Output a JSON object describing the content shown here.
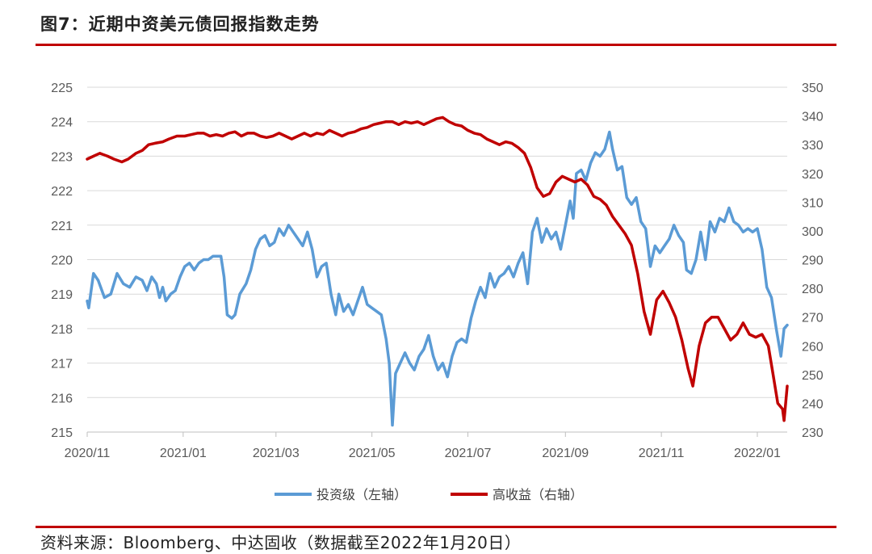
{
  "header": {
    "title": "图7：近期中资美元债回报指数走势"
  },
  "footer": {
    "source": "资料来源：Bloomberg、中达固收（数据截至2022年1月20日）"
  },
  "colors": {
    "series_left": "#5b9bd5",
    "series_right": "#c00000",
    "grid": "#d9d9d9",
    "rule": "#c00000"
  },
  "chart_data": {
    "type": "line",
    "title": "图7：近期中资美元债回报指数走势",
    "xlabel": "",
    "ylabel": "",
    "x_range": [
      "2020-11",
      "2022-01-20"
    ],
    "x_ticks": [
      "2020/11",
      "2021/01",
      "2021/03",
      "2021/05",
      "2021/07",
      "2021/09",
      "2021/11",
      "2022/01"
    ],
    "y_left": {
      "lim": [
        215,
        225
      ],
      "ticks": [
        215,
        216,
        217,
        218,
        219,
        220,
        221,
        222,
        223,
        224,
        225
      ]
    },
    "y_right": {
      "lim": [
        230,
        350
      ],
      "ticks": [
        230,
        240,
        250,
        260,
        270,
        280,
        290,
        300,
        310,
        320,
        330,
        340,
        350
      ]
    },
    "grid": true,
    "legend": "bottom-center",
    "series": [
      {
        "name": "投资级（左轴）",
        "axis": "left",
        "points": [
          [
            "2020-11-01",
            218.8
          ],
          [
            "2020-11-02",
            218.6
          ],
          [
            "2020-11-05",
            219.6
          ],
          [
            "2020-11-08",
            219.4
          ],
          [
            "2020-11-12",
            218.9
          ],
          [
            "2020-11-16",
            219.0
          ],
          [
            "2020-11-20",
            219.6
          ],
          [
            "2020-11-24",
            219.3
          ],
          [
            "2020-11-28",
            219.2
          ],
          [
            "2020-12-02",
            219.5
          ],
          [
            "2020-12-06",
            219.4
          ],
          [
            "2020-12-09",
            219.1
          ],
          [
            "2020-12-12",
            219.5
          ],
          [
            "2020-12-15",
            219.3
          ],
          [
            "2020-12-17",
            218.9
          ],
          [
            "2020-12-19",
            219.2
          ],
          [
            "2020-12-21",
            218.8
          ],
          [
            "2020-12-24",
            219.0
          ],
          [
            "2020-12-27",
            219.1
          ],
          [
            "2020-12-30",
            219.5
          ],
          [
            "2021-01-02",
            219.8
          ],
          [
            "2021-01-05",
            219.9
          ],
          [
            "2021-01-08",
            219.7
          ],
          [
            "2021-01-11",
            219.9
          ],
          [
            "2021-01-14",
            220.0
          ],
          [
            "2021-01-17",
            220.0
          ],
          [
            "2021-01-20",
            220.1
          ],
          [
            "2021-01-23",
            220.1
          ],
          [
            "2021-01-25",
            220.1
          ],
          [
            "2021-01-27",
            219.5
          ],
          [
            "2021-01-29",
            218.4
          ],
          [
            "2021-02-01",
            218.3
          ],
          [
            "2021-02-03",
            218.4
          ],
          [
            "2021-02-06",
            219.0
          ],
          [
            "2021-02-10",
            219.3
          ],
          [
            "2021-02-13",
            219.7
          ],
          [
            "2021-02-16",
            220.3
          ],
          [
            "2021-02-19",
            220.6
          ],
          [
            "2021-02-22",
            220.7
          ],
          [
            "2021-02-25",
            220.4
          ],
          [
            "2021-02-28",
            220.5
          ],
          [
            "2021-03-03",
            220.9
          ],
          [
            "2021-03-06",
            220.7
          ],
          [
            "2021-03-09",
            221.0
          ],
          [
            "2021-03-12",
            220.8
          ],
          [
            "2021-03-15",
            220.6
          ],
          [
            "2021-03-18",
            220.4
          ],
          [
            "2021-03-21",
            220.8
          ],
          [
            "2021-03-24",
            220.3
          ],
          [
            "2021-03-27",
            219.5
          ],
          [
            "2021-03-30",
            219.8
          ],
          [
            "2021-04-02",
            219.9
          ],
          [
            "2021-04-05",
            219.0
          ],
          [
            "2021-04-08",
            218.4
          ],
          [
            "2021-04-10",
            219.0
          ],
          [
            "2021-04-13",
            218.5
          ],
          [
            "2021-04-16",
            218.7
          ],
          [
            "2021-04-19",
            218.4
          ],
          [
            "2021-04-22",
            218.8
          ],
          [
            "2021-04-25",
            219.2
          ],
          [
            "2021-04-28",
            218.7
          ],
          [
            "2021-05-01",
            218.6
          ],
          [
            "2021-05-04",
            218.5
          ],
          [
            "2021-05-07",
            218.4
          ],
          [
            "2021-05-10",
            217.7
          ],
          [
            "2021-05-12",
            217.0
          ],
          [
            "2021-05-14",
            215.2
          ],
          [
            "2021-05-16",
            216.7
          ],
          [
            "2021-05-19",
            217.0
          ],
          [
            "2021-05-22",
            217.3
          ],
          [
            "2021-05-25",
            217.0
          ],
          [
            "2021-05-28",
            216.8
          ],
          [
            "2021-05-31",
            217.2
          ],
          [
            "2021-06-03",
            217.4
          ],
          [
            "2021-06-06",
            217.8
          ],
          [
            "2021-06-09",
            217.2
          ],
          [
            "2021-06-12",
            216.8
          ],
          [
            "2021-06-15",
            217.0
          ],
          [
            "2021-06-18",
            216.6
          ],
          [
            "2021-06-21",
            217.2
          ],
          [
            "2021-06-24",
            217.6
          ],
          [
            "2021-06-27",
            217.7
          ],
          [
            "2021-06-30",
            217.6
          ],
          [
            "2021-07-03",
            218.3
          ],
          [
            "2021-07-06",
            218.8
          ],
          [
            "2021-07-09",
            219.2
          ],
          [
            "2021-07-12",
            218.9
          ],
          [
            "2021-07-15",
            219.6
          ],
          [
            "2021-07-18",
            219.2
          ],
          [
            "2021-07-21",
            219.5
          ],
          [
            "2021-07-24",
            219.6
          ],
          [
            "2021-07-27",
            219.8
          ],
          [
            "2021-07-30",
            219.5
          ],
          [
            "2021-08-02",
            219.9
          ],
          [
            "2021-08-05",
            220.2
          ],
          [
            "2021-08-08",
            219.3
          ],
          [
            "2021-08-11",
            220.8
          ],
          [
            "2021-08-14",
            221.2
          ],
          [
            "2021-08-17",
            220.5
          ],
          [
            "2021-08-20",
            220.9
          ],
          [
            "2021-08-23",
            220.6
          ],
          [
            "2021-08-26",
            220.8
          ],
          [
            "2021-08-29",
            220.3
          ],
          [
            "2021-09-01",
            221.0
          ],
          [
            "2021-09-04",
            221.7
          ],
          [
            "2021-09-06",
            221.2
          ],
          [
            "2021-09-08",
            222.5
          ],
          [
            "2021-09-11",
            222.6
          ],
          [
            "2021-09-14",
            222.3
          ],
          [
            "2021-09-17",
            222.8
          ],
          [
            "2021-09-20",
            223.1
          ],
          [
            "2021-09-23",
            223.0
          ],
          [
            "2021-09-26",
            223.2
          ],
          [
            "2021-09-29",
            223.7
          ],
          [
            "2021-10-01",
            223.2
          ],
          [
            "2021-10-04",
            222.6
          ],
          [
            "2021-10-07",
            222.7
          ],
          [
            "2021-10-10",
            221.8
          ],
          [
            "2021-10-13",
            221.6
          ],
          [
            "2021-10-16",
            221.8
          ],
          [
            "2021-10-19",
            221.1
          ],
          [
            "2021-10-22",
            220.9
          ],
          [
            "2021-10-25",
            219.8
          ],
          [
            "2021-10-28",
            220.4
          ],
          [
            "2021-10-31",
            220.2
          ],
          [
            "2021-11-03",
            220.4
          ],
          [
            "2021-11-06",
            220.6
          ],
          [
            "2021-11-09",
            221.0
          ],
          [
            "2021-11-12",
            220.7
          ],
          [
            "2021-11-15",
            220.5
          ],
          [
            "2021-11-17",
            219.7
          ],
          [
            "2021-11-20",
            219.6
          ],
          [
            "2021-11-23",
            220.0
          ],
          [
            "2021-11-26",
            220.8
          ],
          [
            "2021-11-29",
            220.0
          ],
          [
            "2021-12-02",
            221.1
          ],
          [
            "2021-12-05",
            220.8
          ],
          [
            "2021-12-08",
            221.2
          ],
          [
            "2021-12-11",
            221.1
          ],
          [
            "2021-12-14",
            221.5
          ],
          [
            "2021-12-17",
            221.1
          ],
          [
            "2021-12-20",
            221.0
          ],
          [
            "2021-12-23",
            220.8
          ],
          [
            "2021-12-26",
            220.9
          ],
          [
            "2021-12-29",
            220.8
          ],
          [
            "2022-01-01",
            220.9
          ],
          [
            "2022-01-04",
            220.3
          ],
          [
            "2022-01-07",
            219.2
          ],
          [
            "2022-01-10",
            218.9
          ],
          [
            "2022-01-13",
            218.0
          ],
          [
            "2022-01-16",
            217.2
          ],
          [
            "2022-01-18",
            218.0
          ],
          [
            "2022-01-20",
            218.1
          ]
        ]
      },
      {
        "name": "高收益（右轴）",
        "axis": "right",
        "points": [
          [
            "2020-11-01",
            325
          ],
          [
            "2020-11-05",
            326
          ],
          [
            "2020-11-09",
            327
          ],
          [
            "2020-11-14",
            326
          ],
          [
            "2020-11-18",
            325
          ],
          [
            "2020-11-23",
            324
          ],
          [
            "2020-11-27",
            325
          ],
          [
            "2020-12-02",
            327
          ],
          [
            "2020-12-06",
            328
          ],
          [
            "2020-12-10",
            330
          ],
          [
            "2020-12-14",
            330.5
          ],
          [
            "2020-12-19",
            331
          ],
          [
            "2020-12-23",
            332
          ],
          [
            "2020-12-28",
            333
          ],
          [
            "2021-01-02",
            333
          ],
          [
            "2021-01-06",
            333.5
          ],
          [
            "2021-01-10",
            334
          ],
          [
            "2021-01-14",
            334
          ],
          [
            "2021-01-18",
            333
          ],
          [
            "2021-01-22",
            333.5
          ],
          [
            "2021-01-26",
            333
          ],
          [
            "2021-01-30",
            334
          ],
          [
            "2021-02-03",
            334.5
          ],
          [
            "2021-02-07",
            333
          ],
          [
            "2021-02-11",
            334
          ],
          [
            "2021-02-15",
            334
          ],
          [
            "2021-02-19",
            333
          ],
          [
            "2021-02-23",
            332.5
          ],
          [
            "2021-02-27",
            333
          ],
          [
            "2021-03-03",
            334
          ],
          [
            "2021-03-07",
            333
          ],
          [
            "2021-03-11",
            332
          ],
          [
            "2021-03-15",
            333
          ],
          [
            "2021-03-19",
            334
          ],
          [
            "2021-03-23",
            333
          ],
          [
            "2021-03-27",
            334
          ],
          [
            "2021-03-31",
            333.5
          ],
          [
            "2021-04-04",
            335
          ],
          [
            "2021-04-08",
            334
          ],
          [
            "2021-04-12",
            333
          ],
          [
            "2021-04-16",
            334
          ],
          [
            "2021-04-20",
            334.5
          ],
          [
            "2021-04-24",
            335.5
          ],
          [
            "2021-04-28",
            336
          ],
          [
            "2021-05-02",
            337
          ],
          [
            "2021-05-06",
            337.5
          ],
          [
            "2021-05-10",
            338
          ],
          [
            "2021-05-14",
            338
          ],
          [
            "2021-05-18",
            337
          ],
          [
            "2021-05-22",
            338
          ],
          [
            "2021-05-26",
            337.5
          ],
          [
            "2021-05-30",
            338
          ],
          [
            "2021-06-03",
            337
          ],
          [
            "2021-06-07",
            338
          ],
          [
            "2021-06-11",
            339
          ],
          [
            "2021-06-15",
            339.5
          ],
          [
            "2021-06-19",
            338
          ],
          [
            "2021-06-23",
            337
          ],
          [
            "2021-06-27",
            336.5
          ],
          [
            "2021-07-01",
            335
          ],
          [
            "2021-07-05",
            334
          ],
          [
            "2021-07-09",
            333.5
          ],
          [
            "2021-07-13",
            332
          ],
          [
            "2021-07-17",
            331
          ],
          [
            "2021-07-21",
            330
          ],
          [
            "2021-07-25",
            331
          ],
          [
            "2021-07-29",
            330.5
          ],
          [
            "2021-08-02",
            329
          ],
          [
            "2021-08-06",
            327
          ],
          [
            "2021-08-10",
            322
          ],
          [
            "2021-08-14",
            315
          ],
          [
            "2021-08-18",
            312
          ],
          [
            "2021-08-22",
            313
          ],
          [
            "2021-08-26",
            317
          ],
          [
            "2021-08-30",
            319
          ],
          [
            "2021-09-03",
            318
          ],
          [
            "2021-09-07",
            317
          ],
          [
            "2021-09-11",
            318
          ],
          [
            "2021-09-15",
            316
          ],
          [
            "2021-09-19",
            312
          ],
          [
            "2021-09-23",
            311
          ],
          [
            "2021-09-27",
            309
          ],
          [
            "2021-10-01",
            305
          ],
          [
            "2021-10-05",
            302
          ],
          [
            "2021-10-09",
            299
          ],
          [
            "2021-10-13",
            295
          ],
          [
            "2021-10-17",
            285
          ],
          [
            "2021-10-21",
            272
          ],
          [
            "2021-10-25",
            264
          ],
          [
            "2021-10-29",
            276
          ],
          [
            "2021-11-02",
            279
          ],
          [
            "2021-11-06",
            275
          ],
          [
            "2021-11-10",
            270
          ],
          [
            "2021-11-14",
            262
          ],
          [
            "2021-11-18",
            252
          ],
          [
            "2021-11-21",
            246
          ],
          [
            "2021-11-25",
            260
          ],
          [
            "2021-11-29",
            268
          ],
          [
            "2021-12-03",
            270
          ],
          [
            "2021-12-07",
            270
          ],
          [
            "2021-12-11",
            266
          ],
          [
            "2021-12-15",
            262
          ],
          [
            "2021-12-19",
            264
          ],
          [
            "2021-12-23",
            268
          ],
          [
            "2021-12-27",
            264
          ],
          [
            "2021-12-31",
            263
          ],
          [
            "2022-01-04",
            264
          ],
          [
            "2022-01-08",
            260
          ],
          [
            "2022-01-11",
            250
          ],
          [
            "2022-01-14",
            240
          ],
          [
            "2022-01-17",
            238
          ],
          [
            "2022-01-18",
            234
          ],
          [
            "2022-01-20",
            246
          ]
        ]
      }
    ]
  }
}
